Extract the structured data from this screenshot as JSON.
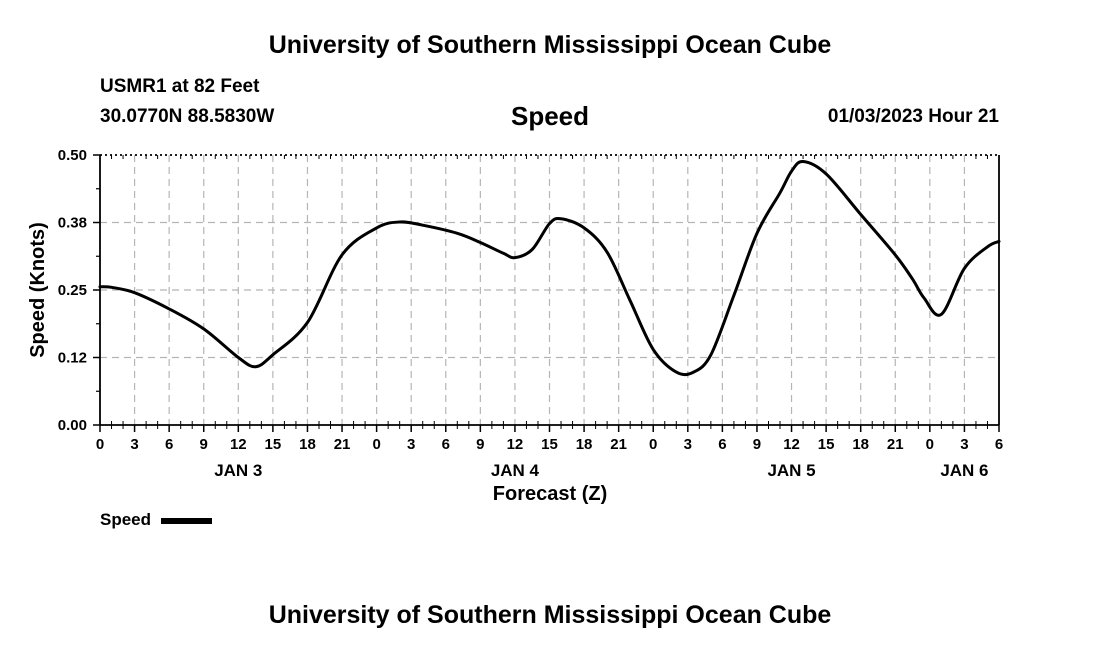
{
  "header": {
    "title": "University of Southern Mississippi Ocean Cube",
    "station": "USMR1 at 82 Feet",
    "coords": "30.0770N  88.5830W",
    "timestamp": "01/03/2023 Hour 21"
  },
  "footer": {
    "title": "University of Southern Mississippi Ocean Cube"
  },
  "chart_data": {
    "type": "line",
    "title": "Speed",
    "xlabel": "Forecast (Z)",
    "ylabel": "Speed (Knots)",
    "ylim": [
      0,
      0.5
    ],
    "yticks": [
      "0.00",
      "0.12",
      "0.25",
      "0.38",
      "0.50"
    ],
    "ytick_values": [
      0,
      0.125,
      0.25,
      0.375,
      0.5
    ],
    "xlim": [
      0,
      78
    ],
    "xticks": [
      {
        "h": 0,
        "label": "0"
      },
      {
        "h": 3,
        "label": "3"
      },
      {
        "h": 6,
        "label": "6"
      },
      {
        "h": 9,
        "label": "9"
      },
      {
        "h": 12,
        "label": "12"
      },
      {
        "h": 15,
        "label": "15"
      },
      {
        "h": 18,
        "label": "18"
      },
      {
        "h": 21,
        "label": "21"
      },
      {
        "h": 24,
        "label": "0"
      },
      {
        "h": 27,
        "label": "3"
      },
      {
        "h": 30,
        "label": "6"
      },
      {
        "h": 33,
        "label": "9"
      },
      {
        "h": 36,
        "label": "12"
      },
      {
        "h": 39,
        "label": "15"
      },
      {
        "h": 42,
        "label": "18"
      },
      {
        "h": 45,
        "label": "21"
      },
      {
        "h": 48,
        "label": "0"
      },
      {
        "h": 51,
        "label": "3"
      },
      {
        "h": 54,
        "label": "6"
      },
      {
        "h": 57,
        "label": "9"
      },
      {
        "h": 60,
        "label": "12"
      },
      {
        "h": 63,
        "label": "15"
      },
      {
        "h": 66,
        "label": "18"
      },
      {
        "h": 69,
        "label": "21"
      },
      {
        "h": 72,
        "label": "0"
      },
      {
        "h": 75,
        "label": "3"
      },
      {
        "h": 78,
        "label": "6"
      }
    ],
    "day_labels": [
      {
        "h": 12,
        "label": "JAN 3"
      },
      {
        "h": 36,
        "label": "JAN 4"
      },
      {
        "h": 60,
        "label": "JAN 5"
      },
      {
        "h": 75,
        "label": "JAN 6"
      }
    ],
    "grid": true,
    "legend": "bottom-left",
    "series": [
      {
        "name": "Speed",
        "color": "#000000",
        "x": [
          0,
          1,
          3,
          6,
          9,
          12,
          13.5,
          15,
          18,
          21,
          24,
          26,
          28,
          31,
          33,
          35,
          36,
          37.5,
          39,
          40,
          42,
          44,
          46,
          48,
          50,
          51.5,
          53,
          55,
          57,
          59,
          60,
          61,
          63,
          66,
          69,
          70.5,
          71.5,
          73,
          75,
          77,
          78
        ],
        "y": [
          0.256,
          0.255,
          0.245,
          0.215,
          0.178,
          0.125,
          0.108,
          0.13,
          0.19,
          0.315,
          0.365,
          0.376,
          0.37,
          0.355,
          0.338,
          0.318,
          0.31,
          0.325,
          0.373,
          0.382,
          0.365,
          0.32,
          0.23,
          0.14,
          0.098,
          0.098,
          0.13,
          0.24,
          0.355,
          0.43,
          0.47,
          0.488,
          0.465,
          0.39,
          0.315,
          0.27,
          0.235,
          0.205,
          0.29,
          0.33,
          0.34
        ]
      }
    ]
  }
}
